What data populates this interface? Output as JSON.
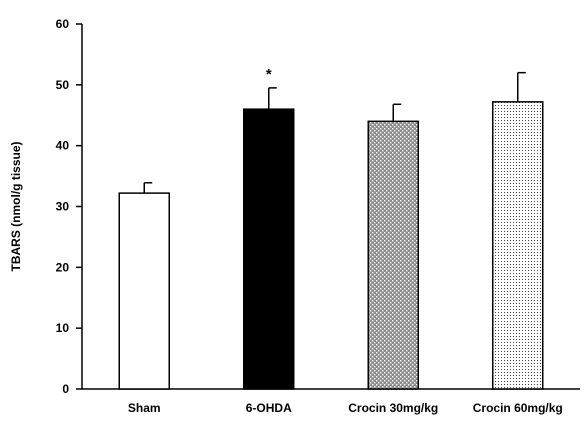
{
  "chart_data": {
    "type": "bar",
    "title": "",
    "xlabel": "",
    "ylabel": "TBARS (nmol/g tissue)",
    "ylim": [
      0,
      60
    ],
    "yticks": [
      "0",
      "10",
      "20",
      "30",
      "40",
      "50",
      "60"
    ],
    "grid": false,
    "categories": [
      "Sham",
      "6-OHDA",
      "Crocin 30mg/kg",
      "Crocin 60mg/kg"
    ],
    "values": [
      32.2,
      46.0,
      44.0,
      47.2
    ],
    "error_upper": [
      1.7,
      3.5,
      2.8,
      4.8
    ],
    "fills": [
      "white",
      "black",
      "dense-crosshatch",
      "light-dots"
    ],
    "annotations": [
      {
        "category": "6-OHDA",
        "text": "*"
      }
    ]
  }
}
